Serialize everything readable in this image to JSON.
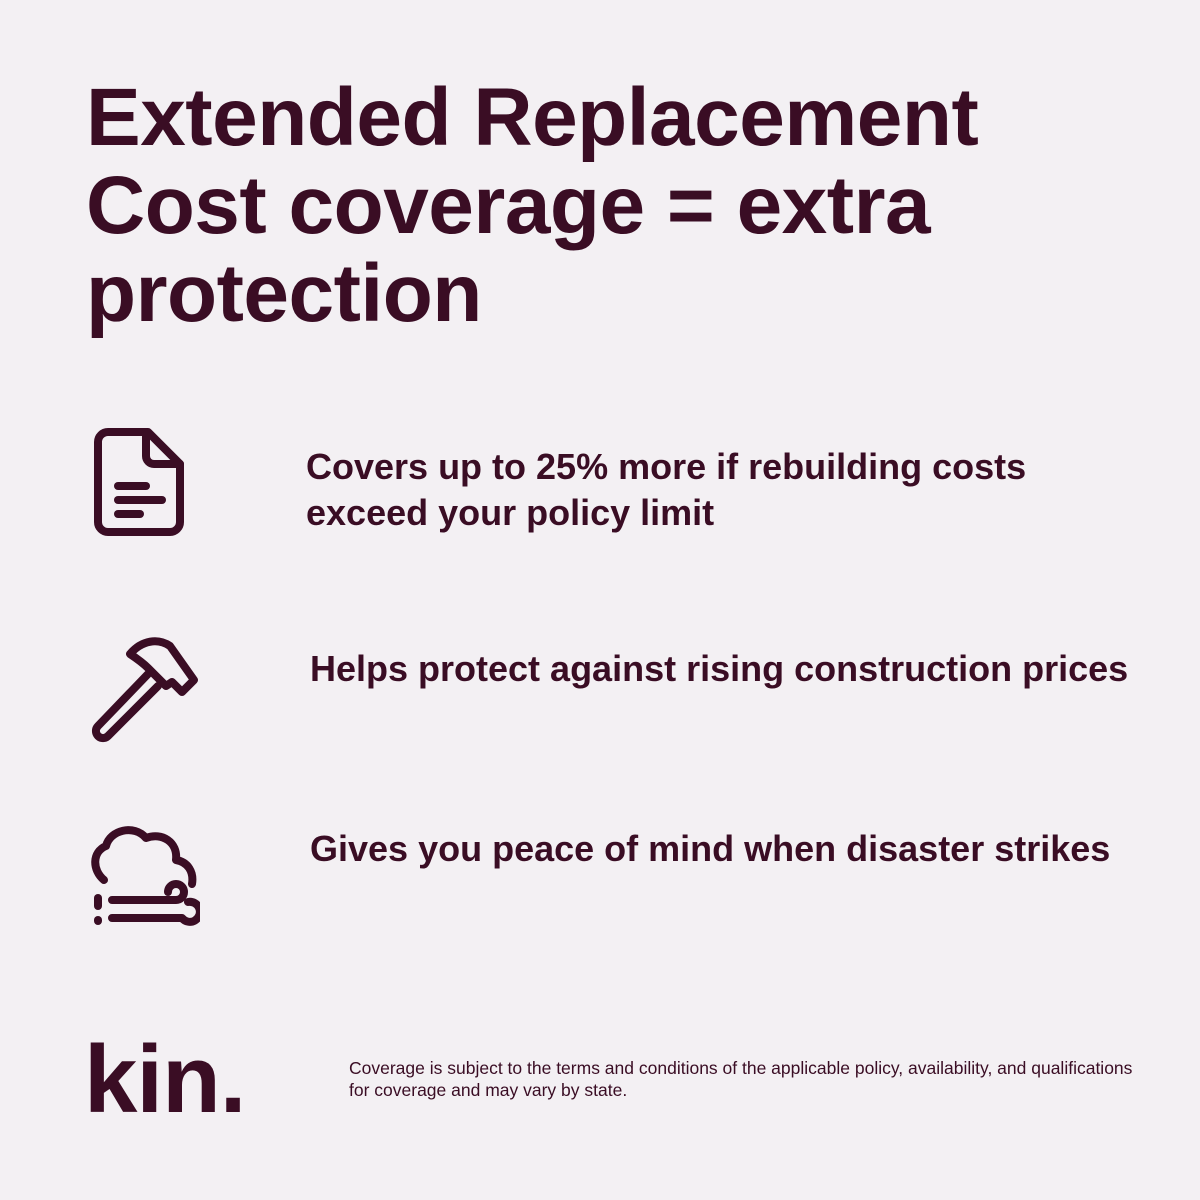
{
  "headline": "Extended Replacement Cost coverage = extra protection",
  "features": [
    {
      "icon": "document-icon",
      "text": "Covers up to 25% more if rebuilding costs exceed your policy limit"
    },
    {
      "icon": "hammer-icon",
      "text": "Helps protect against rising construction prices"
    },
    {
      "icon": "storm-cloud-icon",
      "text": "Gives you peace of mind when disaster strikes"
    }
  ],
  "logo": "kin.",
  "disclaimer": "Coverage is subject to the terms and conditions of the applicable policy, availability, and qualifications for coverage and may vary by state.",
  "colors": {
    "background": "#f3f0f3",
    "brand": "#3a0d24"
  }
}
